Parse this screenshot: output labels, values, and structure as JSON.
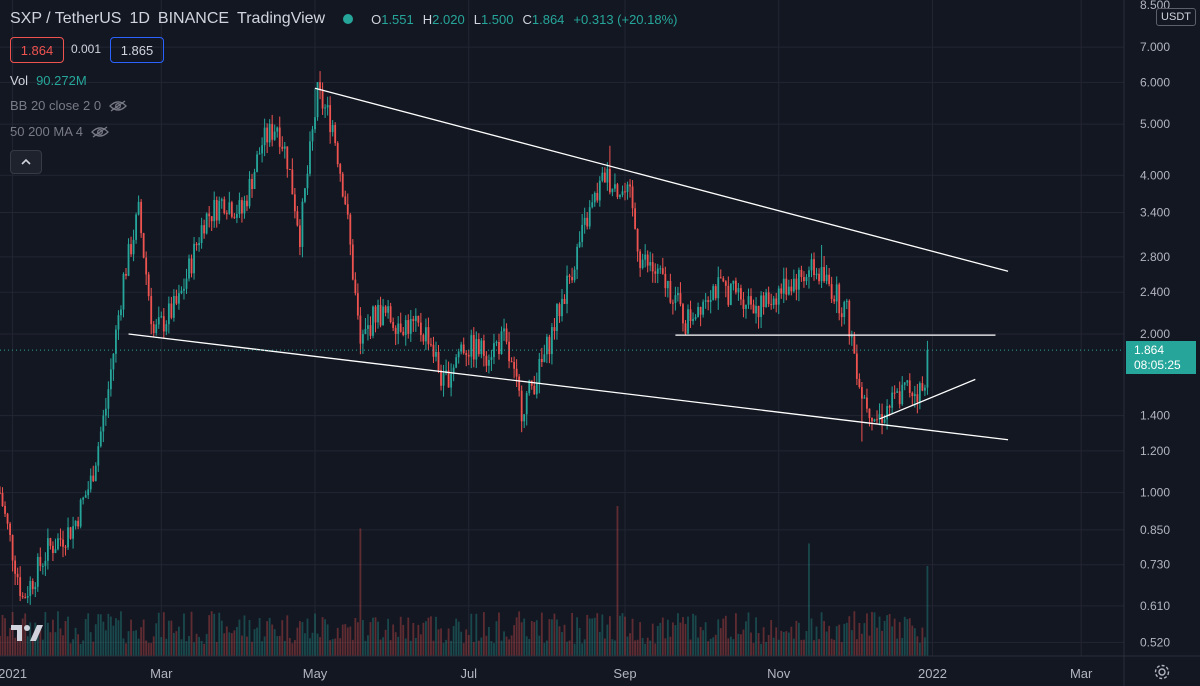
{
  "header": {
    "symbol": "SXP / TetherUS",
    "interval": "1D",
    "exchange": "BINANCE",
    "source": "TradingView",
    "ohlc": [
      {
        "k": "O",
        "v": "1.551"
      },
      {
        "k": "H",
        "v": "2.020"
      },
      {
        "k": "L",
        "v": "1.500"
      },
      {
        "k": "C",
        "v": "1.864"
      },
      {
        "k": "",
        "v": "+0.313 (+20.18%)"
      }
    ]
  },
  "trade": {
    "sell": "1.864",
    "spread": "0.001",
    "buy": "1.865"
  },
  "indicators": {
    "vol_label": "Vol",
    "vol_value": "90.272M",
    "bb": "BB 20 close 2 0",
    "ma": "50 200 MA 4"
  },
  "price_axis": {
    "currency": "USDT",
    "last_price": "1.864",
    "countdown": "08:05:25"
  },
  "colors": {
    "up": "#26a69a",
    "down": "#ef5350",
    "background": "#131722",
    "grid": "#232632",
    "line": "#ffffff"
  },
  "icons": {
    "hide": "eye-off-icon",
    "collapse": "chevron-up-icon",
    "logo": "tradingview-logo-icon",
    "settings": "gear-icon"
  },
  "chart_data": {
    "type": "candlestick",
    "scale": "log",
    "y_ticks": [
      8.5,
      7.0,
      6.0,
      5.0,
      4.0,
      3.4,
      2.8,
      2.4,
      2.0,
      1.4,
      1.2,
      1.0,
      0.85,
      0.73,
      0.61,
      0.52
    ],
    "y_tick_labels": [
      "8.500",
      "7.000",
      "6.000",
      "5.000",
      "4.000",
      "3.400",
      "2.800",
      "2.400",
      "2.000",
      "1.400",
      "1.200",
      "1.000",
      "0.850",
      "0.730",
      "0.610",
      "0.520"
    ],
    "x_ticks": [
      {
        "date": "2021-01-01",
        "label": "2021"
      },
      {
        "date": "2021-03-01",
        "label": "Mar"
      },
      {
        "date": "2021-05-01",
        "label": "May"
      },
      {
        "date": "2021-07-01",
        "label": "Jul"
      },
      {
        "date": "2021-09-01",
        "label": "Sep"
      },
      {
        "date": "2021-11-01",
        "label": "Nov"
      },
      {
        "date": "2022-01-01",
        "label": "2022"
      },
      {
        "date": "2022-03-01",
        "label": "Mar"
      }
    ],
    "x_range": [
      "2020-12-27",
      "2022-03-18"
    ],
    "y_range": [
      0.49,
      8.6
    ],
    "price_path": [
      [
        "2020-12-27",
        1.0
      ],
      [
        "2021-01-05",
        0.63
      ],
      [
        "2021-01-15",
        0.78
      ],
      [
        "2021-01-25",
        0.86
      ],
      [
        "2021-02-01",
        1.05
      ],
      [
        "2021-02-07",
        1.45
      ],
      [
        "2021-02-14",
        2.55
      ],
      [
        "2021-02-20",
        3.4
      ],
      [
        "2021-02-26",
        2.0
      ],
      [
        "2021-03-08",
        2.3
      ],
      [
        "2021-03-18",
        3.3
      ],
      [
        "2021-03-26",
        3.6
      ],
      [
        "2021-04-02",
        3.4
      ],
      [
        "2021-04-10",
        4.6
      ],
      [
        "2021-04-16",
        5.0
      ],
      [
        "2021-04-20",
        4.3
      ],
      [
        "2021-04-25",
        3.1
      ],
      [
        "2021-05-02",
        5.7
      ],
      [
        "2021-05-08",
        5.0
      ],
      [
        "2021-05-13",
        3.6
      ],
      [
        "2021-05-19",
        1.9
      ],
      [
        "2021-05-25",
        2.2
      ],
      [
        "2021-06-05",
        2.1
      ],
      [
        "2021-06-15",
        2.0
      ],
      [
        "2021-06-21",
        1.6
      ],
      [
        "2021-06-28",
        1.9
      ],
      [
        "2021-07-08",
        1.85
      ],
      [
        "2021-07-15",
        1.95
      ],
      [
        "2021-07-22",
        1.45
      ],
      [
        "2021-07-30",
        1.75
      ],
      [
        "2021-08-08",
        2.4
      ],
      [
        "2021-08-17",
        3.3
      ],
      [
        "2021-08-24",
        4.0
      ],
      [
        "2021-09-03",
        3.6
      ],
      [
        "2021-09-07",
        2.8
      ],
      [
        "2021-09-20",
        2.4
      ],
      [
        "2021-09-25",
        2.1
      ],
      [
        "2021-10-05",
        2.45
      ],
      [
        "2021-10-15",
        2.4
      ],
      [
        "2021-10-25",
        2.25
      ],
      [
        "2021-11-05",
        2.5
      ],
      [
        "2021-11-15",
        2.65
      ],
      [
        "2021-11-22",
        2.45
      ],
      [
        "2021-11-28",
        2.2
      ],
      [
        "2021-12-04",
        1.55
      ],
      [
        "2021-12-10",
        1.38
      ],
      [
        "2021-12-17",
        1.5
      ],
      [
        "2021-12-22",
        1.58
      ],
      [
        "2021-12-29",
        1.55
      ],
      [
        "2021-12-30",
        1.864
      ]
    ],
    "highlights": [
      {
        "date": "2021-05-01",
        "high": 5.85
      },
      {
        "date": "2021-08-26",
        "high": 4.55
      },
      {
        "date": "2021-11-18",
        "high": 2.95
      },
      {
        "date": "2021-12-04",
        "low": 1.25
      }
    ],
    "trendlines": [
      {
        "name": "upper",
        "from": [
          "2021-05-01",
          5.85
        ],
        "to": [
          "2022-01-31",
          2.63
        ]
      },
      {
        "name": "lower",
        "from": [
          "2021-02-16",
          2.0
        ],
        "to": [
          "2022-01-31",
          1.26
        ]
      },
      {
        "name": "support",
        "from": [
          "2021-09-21",
          1.99
        ],
        "to": [
          "2022-01-26",
          1.99
        ]
      },
      {
        "name": "rising",
        "from": [
          "2021-12-11",
          1.38
        ],
        "to": [
          "2022-01-18",
          1.64
        ]
      }
    ],
    "last_close": 1.864,
    "volume_spikes": [
      {
        "date": "2021-05-19",
        "rel": 0.85
      },
      {
        "date": "2021-08-29",
        "rel": 1.0
      },
      {
        "date": "2021-11-13",
        "rel": 0.75
      },
      {
        "date": "2021-12-30",
        "rel": 0.6
      }
    ]
  }
}
